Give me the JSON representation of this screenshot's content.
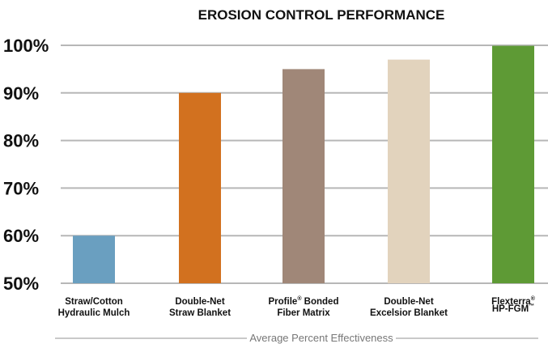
{
  "chart_data": {
    "type": "bar",
    "title": "EROSION CONTROL PERFORMANCE",
    "xlabel": "Average Percent Effectiveness",
    "ylabel": "",
    "ylim": [
      50,
      100
    ],
    "grid": true,
    "y_ticks": [
      "50%",
      "60%",
      "70%",
      "80%",
      "90%",
      "100%"
    ],
    "categories": [
      {
        "lines": [
          {
            "text": "Straw/Cotton"
          },
          {
            "text": "Hydraulic Mulch"
          }
        ]
      },
      {
        "lines": [
          {
            "text": "Double-Net"
          },
          {
            "text": "Straw Blanket"
          }
        ]
      },
      {
        "lines": [
          {
            "text": "Profile",
            "sup": "®",
            "after": " Bonded"
          },
          {
            "text": "Fiber Matrix"
          }
        ]
      },
      {
        "lines": [
          {
            "text": "Double-Net"
          },
          {
            "text": "Excelsior Blanket"
          }
        ]
      },
      {
        "lines": [
          {
            "text": "Flexterra",
            "sup": "®"
          },
          {
            "text": "HP-FGM",
            "sup": "™"
          }
        ]
      }
    ],
    "values": [
      60,
      90,
      95,
      97,
      99.9
    ],
    "colors": [
      "#6a9fc0",
      "#d2711f",
      "#a08778",
      "#e2d3bd",
      "#5e9a35"
    ]
  }
}
